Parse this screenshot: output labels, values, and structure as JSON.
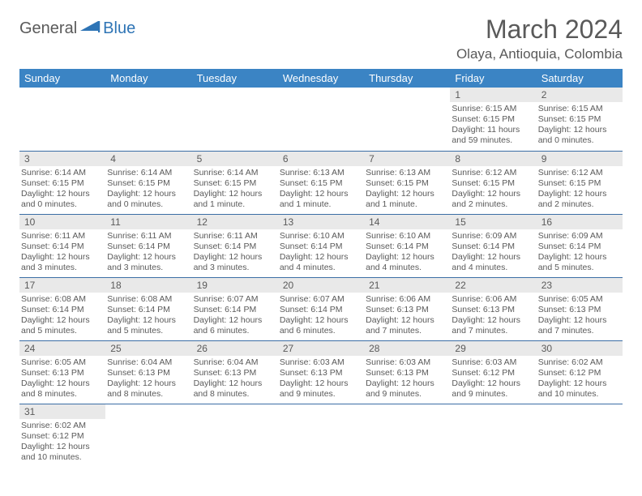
{
  "logo": {
    "general": "General",
    "blue": "Blue"
  },
  "title": "March 2024",
  "location": "Olaya, Antioquia, Colombia",
  "colors": {
    "header_bg": "#3b84c4",
    "header_text": "#ffffff",
    "daynum_bg": "#e9e9e9",
    "text": "#5a5a5a",
    "row_border": "#3b6ea5",
    "logo_blue": "#2e74b5"
  },
  "day_headers": [
    "Sunday",
    "Monday",
    "Tuesday",
    "Wednesday",
    "Thursday",
    "Friday",
    "Saturday"
  ],
  "weeks": [
    [
      null,
      null,
      null,
      null,
      null,
      {
        "d": "1",
        "sr": "6:15 AM",
        "ss": "6:15 PM",
        "dl": "11 hours and 59 minutes."
      },
      {
        "d": "2",
        "sr": "6:15 AM",
        "ss": "6:15 PM",
        "dl": "12 hours and 0 minutes."
      }
    ],
    [
      {
        "d": "3",
        "sr": "6:14 AM",
        "ss": "6:15 PM",
        "dl": "12 hours and 0 minutes."
      },
      {
        "d": "4",
        "sr": "6:14 AM",
        "ss": "6:15 PM",
        "dl": "12 hours and 0 minutes."
      },
      {
        "d": "5",
        "sr": "6:14 AM",
        "ss": "6:15 PM",
        "dl": "12 hours and 1 minute."
      },
      {
        "d": "6",
        "sr": "6:13 AM",
        "ss": "6:15 PM",
        "dl": "12 hours and 1 minute."
      },
      {
        "d": "7",
        "sr": "6:13 AM",
        "ss": "6:15 PM",
        "dl": "12 hours and 1 minute."
      },
      {
        "d": "8",
        "sr": "6:12 AM",
        "ss": "6:15 PM",
        "dl": "12 hours and 2 minutes."
      },
      {
        "d": "9",
        "sr": "6:12 AM",
        "ss": "6:15 PM",
        "dl": "12 hours and 2 minutes."
      }
    ],
    [
      {
        "d": "10",
        "sr": "6:11 AM",
        "ss": "6:14 PM",
        "dl": "12 hours and 3 minutes."
      },
      {
        "d": "11",
        "sr": "6:11 AM",
        "ss": "6:14 PM",
        "dl": "12 hours and 3 minutes."
      },
      {
        "d": "12",
        "sr": "6:11 AM",
        "ss": "6:14 PM",
        "dl": "12 hours and 3 minutes."
      },
      {
        "d": "13",
        "sr": "6:10 AM",
        "ss": "6:14 PM",
        "dl": "12 hours and 4 minutes."
      },
      {
        "d": "14",
        "sr": "6:10 AM",
        "ss": "6:14 PM",
        "dl": "12 hours and 4 minutes."
      },
      {
        "d": "15",
        "sr": "6:09 AM",
        "ss": "6:14 PM",
        "dl": "12 hours and 4 minutes."
      },
      {
        "d": "16",
        "sr": "6:09 AM",
        "ss": "6:14 PM",
        "dl": "12 hours and 5 minutes."
      }
    ],
    [
      {
        "d": "17",
        "sr": "6:08 AM",
        "ss": "6:14 PM",
        "dl": "12 hours and 5 minutes."
      },
      {
        "d": "18",
        "sr": "6:08 AM",
        "ss": "6:14 PM",
        "dl": "12 hours and 5 minutes."
      },
      {
        "d": "19",
        "sr": "6:07 AM",
        "ss": "6:14 PM",
        "dl": "12 hours and 6 minutes."
      },
      {
        "d": "20",
        "sr": "6:07 AM",
        "ss": "6:14 PM",
        "dl": "12 hours and 6 minutes."
      },
      {
        "d": "21",
        "sr": "6:06 AM",
        "ss": "6:13 PM",
        "dl": "12 hours and 7 minutes."
      },
      {
        "d": "22",
        "sr": "6:06 AM",
        "ss": "6:13 PM",
        "dl": "12 hours and 7 minutes."
      },
      {
        "d": "23",
        "sr": "6:05 AM",
        "ss": "6:13 PM",
        "dl": "12 hours and 7 minutes."
      }
    ],
    [
      {
        "d": "24",
        "sr": "6:05 AM",
        "ss": "6:13 PM",
        "dl": "12 hours and 8 minutes."
      },
      {
        "d": "25",
        "sr": "6:04 AM",
        "ss": "6:13 PM",
        "dl": "12 hours and 8 minutes."
      },
      {
        "d": "26",
        "sr": "6:04 AM",
        "ss": "6:13 PM",
        "dl": "12 hours and 8 minutes."
      },
      {
        "d": "27",
        "sr": "6:03 AM",
        "ss": "6:13 PM",
        "dl": "12 hours and 9 minutes."
      },
      {
        "d": "28",
        "sr": "6:03 AM",
        "ss": "6:13 PM",
        "dl": "12 hours and 9 minutes."
      },
      {
        "d": "29",
        "sr": "6:03 AM",
        "ss": "6:12 PM",
        "dl": "12 hours and 9 minutes."
      },
      {
        "d": "30",
        "sr": "6:02 AM",
        "ss": "6:12 PM",
        "dl": "12 hours and 10 minutes."
      }
    ],
    [
      {
        "d": "31",
        "sr": "6:02 AM",
        "ss": "6:12 PM",
        "dl": "12 hours and 10 minutes."
      },
      null,
      null,
      null,
      null,
      null,
      null
    ]
  ],
  "labels": {
    "sunrise": "Sunrise:",
    "sunset": "Sunset:",
    "daylight": "Daylight:"
  }
}
